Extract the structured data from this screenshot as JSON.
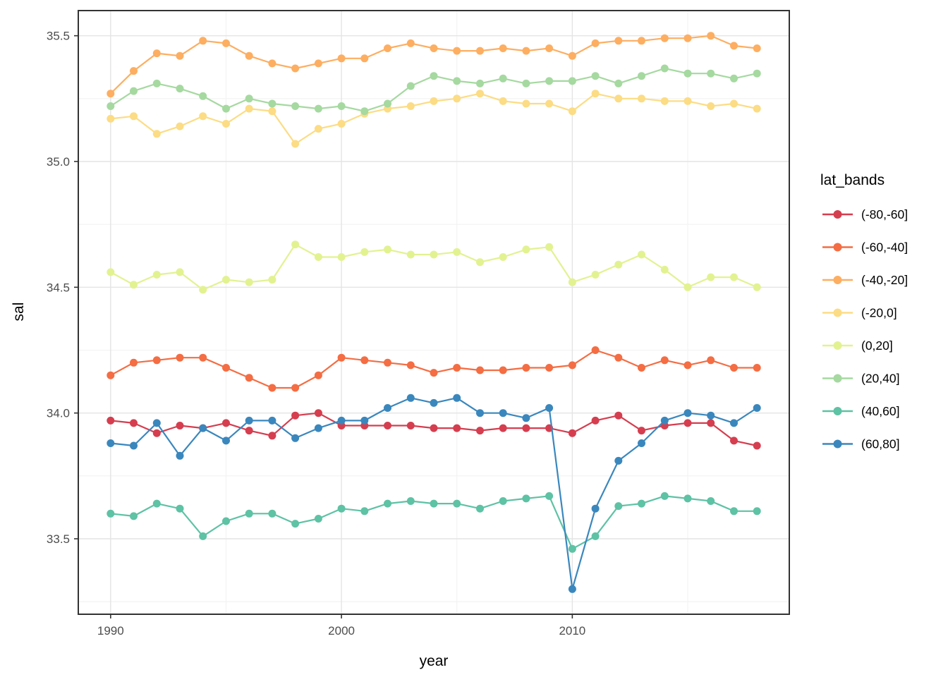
{
  "chart_data": {
    "type": "line",
    "xlabel": "year",
    "ylabel": "sal",
    "legend_title": "lat_bands",
    "legend_position": "right",
    "grid": true,
    "xlim": [
      1988.6,
      2019.4
    ],
    "ylim": [
      33.2,
      35.6
    ],
    "x_ticks": [
      1990,
      2000,
      2010
    ],
    "x_tick_labels": [
      "1990",
      "2000",
      "2010"
    ],
    "x_minor_ticks": [
      1995,
      2005,
      2015
    ],
    "y_ticks": [
      33.5,
      34.0,
      34.5,
      35.0,
      35.5
    ],
    "y_tick_labels": [
      "33.5",
      "34.0",
      "34.5",
      "35.0",
      "35.5"
    ],
    "y_minor_ticks": [
      33.25,
      33.75,
      34.25,
      34.75,
      35.25
    ],
    "x": [
      1990,
      1991,
      1992,
      1993,
      1994,
      1995,
      1996,
      1997,
      1998,
      1999,
      2000,
      2001,
      2002,
      2003,
      2004,
      2005,
      2006,
      2007,
      2008,
      2009,
      2010,
      2011,
      2012,
      2013,
      2014,
      2015,
      2016,
      2017,
      2018
    ],
    "series": [
      {
        "name": "(-80,-60]",
        "color": "#d53e4f",
        "values": [
          33.97,
          33.96,
          33.92,
          33.95,
          33.94,
          33.96,
          33.93,
          33.91,
          33.99,
          34.0,
          33.95,
          33.95,
          33.95,
          33.95,
          33.94,
          33.94,
          33.93,
          33.94,
          33.94,
          33.94,
          33.92,
          33.97,
          33.99,
          33.93,
          33.95,
          33.96,
          33.96,
          33.89,
          33.87
        ]
      },
      {
        "name": "(-60,-40]",
        "color": "#f46d43",
        "values": [
          34.15,
          34.2,
          34.21,
          34.22,
          34.22,
          34.18,
          34.14,
          34.1,
          34.1,
          34.15,
          34.22,
          34.21,
          34.2,
          34.19,
          34.16,
          34.18,
          34.17,
          34.17,
          34.18,
          34.18,
          34.19,
          34.25,
          34.22,
          34.18,
          34.21,
          34.19,
          34.21,
          34.18,
          34.18
        ]
      },
      {
        "name": "(-40,-20]",
        "color": "#fdae61",
        "values": [
          35.27,
          35.36,
          35.43,
          35.42,
          35.48,
          35.47,
          35.42,
          35.39,
          35.37,
          35.39,
          35.41,
          35.41,
          35.45,
          35.47,
          35.45,
          35.44,
          35.44,
          35.45,
          35.44,
          35.45,
          35.42,
          35.47,
          35.48,
          35.48,
          35.49,
          35.49,
          35.5,
          35.46,
          35.45
        ]
      },
      {
        "name": "(-20,0]",
        "color": "#fcdc84",
        "values": [
          35.17,
          35.18,
          35.11,
          35.14,
          35.18,
          35.15,
          35.21,
          35.2,
          35.07,
          35.13,
          35.15,
          35.19,
          35.21,
          35.22,
          35.24,
          35.25,
          35.27,
          35.24,
          35.23,
          35.23,
          35.2,
          35.27,
          35.25,
          35.25,
          35.24,
          35.24,
          35.22,
          35.23,
          35.21
        ]
      },
      {
        "name": "(0,20]",
        "color": "#e2f291",
        "values": [
          34.56,
          34.51,
          34.55,
          34.56,
          34.49,
          34.53,
          34.52,
          34.53,
          34.67,
          34.62,
          34.62,
          34.64,
          34.65,
          34.63,
          34.63,
          34.64,
          34.6,
          34.62,
          34.65,
          34.66,
          34.52,
          34.55,
          34.59,
          34.63,
          34.57,
          34.5,
          34.54,
          34.54,
          34.5
        ]
      },
      {
        "name": "(20,40]",
        "color": "#a5d9a0",
        "values": [
          35.22,
          35.28,
          35.31,
          35.29,
          35.26,
          35.21,
          35.25,
          35.23,
          35.22,
          35.21,
          35.22,
          35.2,
          35.23,
          35.3,
          35.34,
          35.32,
          35.31,
          35.33,
          35.31,
          35.32,
          35.32,
          35.34,
          35.31,
          35.34,
          35.37,
          35.35,
          35.35,
          35.33,
          35.35
        ]
      },
      {
        "name": "(40,60]",
        "color": "#5ec2a4",
        "values": [
          33.6,
          33.59,
          33.64,
          33.62,
          33.51,
          33.57,
          33.6,
          33.6,
          33.56,
          33.58,
          33.62,
          33.61,
          33.64,
          33.65,
          33.64,
          33.64,
          33.62,
          33.65,
          33.66,
          33.67,
          33.46,
          33.51,
          33.63,
          33.64,
          33.67,
          33.66,
          33.65,
          33.61,
          33.61
        ]
      },
      {
        "name": "(60,80]",
        "color": "#3a87bd",
        "values": [
          33.88,
          33.87,
          33.96,
          33.83,
          33.94,
          33.89,
          33.97,
          33.97,
          33.9,
          33.94,
          33.97,
          33.97,
          34.02,
          34.06,
          34.04,
          34.06,
          34.0,
          34.0,
          33.98,
          34.02,
          33.3,
          33.62,
          33.81,
          33.88,
          33.97,
          34.0,
          33.99,
          33.96,
          34.02
        ]
      }
    ],
    "style": {
      "panel_border": "#333333",
      "grid_major": "#e4e4e4",
      "grid_minor": "#f2f2f2",
      "tick_color": "#333333",
      "tick_label_color": "#4d4d4d",
      "point_radius": 5.5,
      "line_width": 2.2
    }
  }
}
